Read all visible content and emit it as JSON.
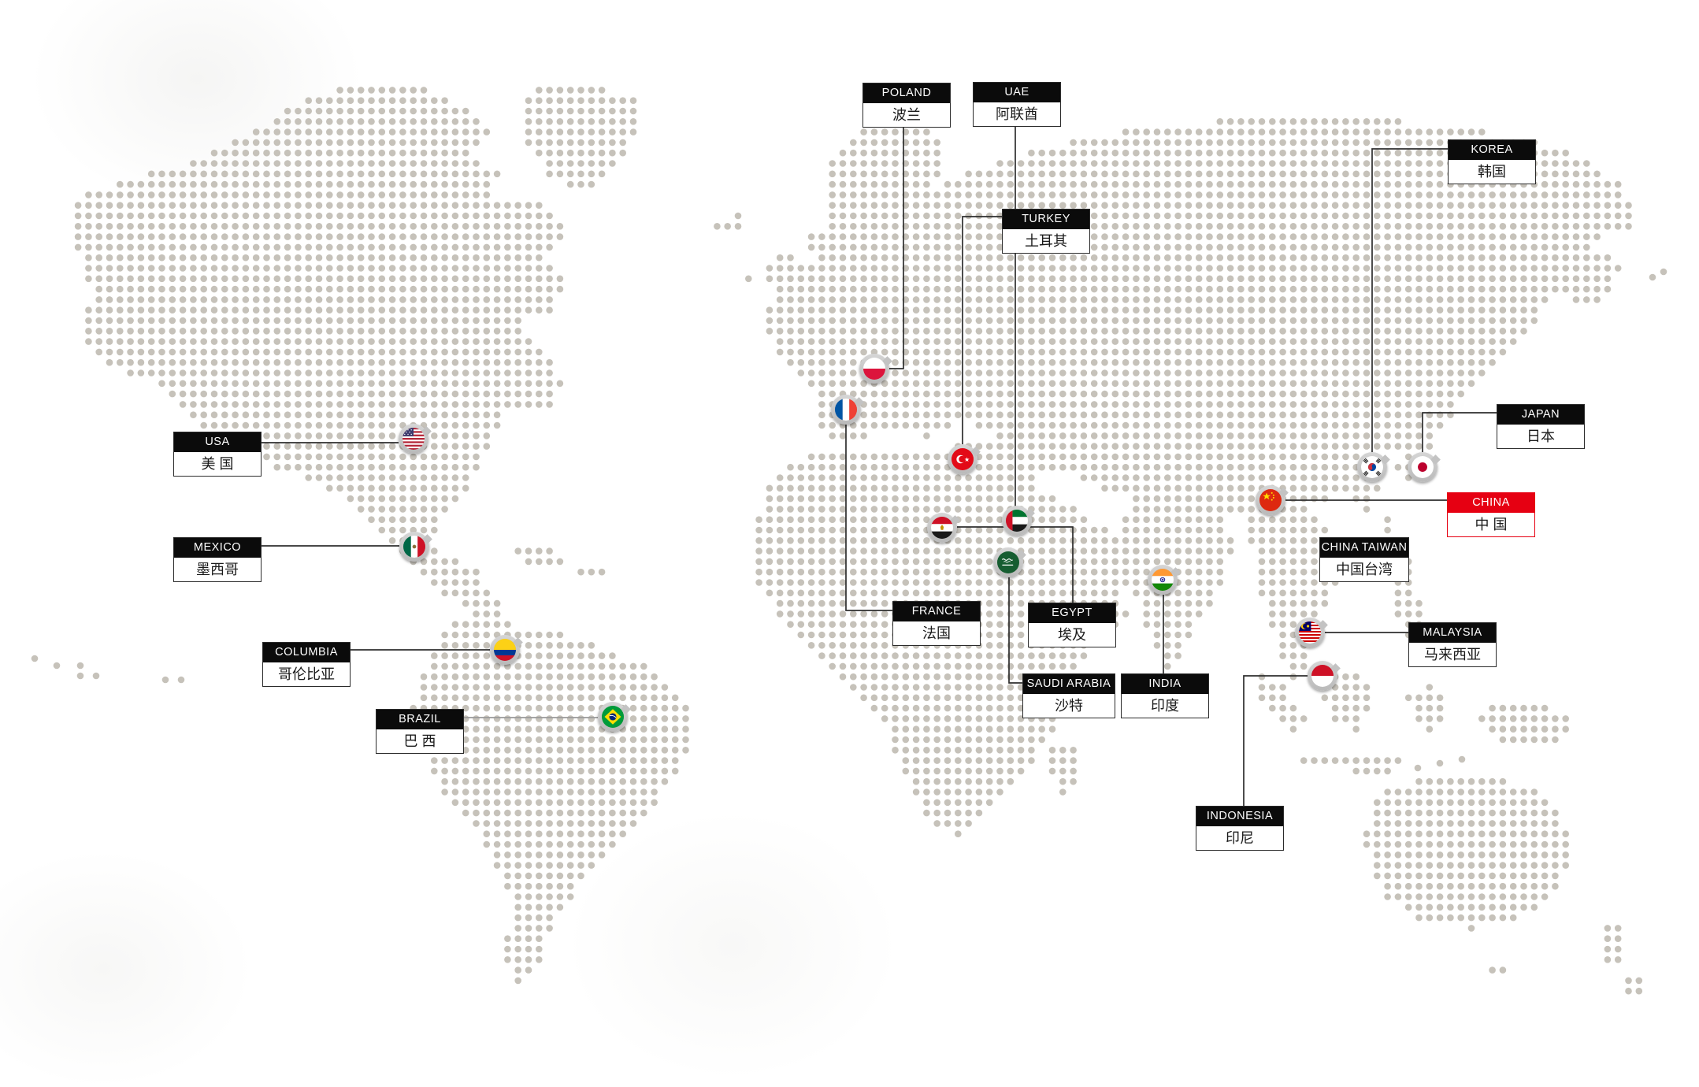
{
  "colors": {
    "accent_red": "#e60012",
    "label_header_bg": "#0b0b0b",
    "dot": "#c6c2ba",
    "line": "#2e2e2e",
    "line_light": "#9a9a9a"
  },
  "countries": [
    {
      "id": "usa",
      "en": "USA",
      "zh": "美 国"
    },
    {
      "id": "mexico",
      "en": "MEXICO",
      "zh": "墨西哥"
    },
    {
      "id": "columbia",
      "en": "COLUMBIA",
      "zh": "哥伦比亚"
    },
    {
      "id": "brazil",
      "en": "BRAZIL",
      "zh": "巴 西"
    },
    {
      "id": "poland",
      "en": "POLAND",
      "zh": "波兰"
    },
    {
      "id": "france",
      "en": "FRANCE",
      "zh": "法国"
    },
    {
      "id": "turkey",
      "en": "TURKEY",
      "zh": "土耳其"
    },
    {
      "id": "egypt",
      "en": "EGYPT",
      "zh": "埃及"
    },
    {
      "id": "uae",
      "en": "UAE",
      "zh": "阿联酋"
    },
    {
      "id": "saudi_arabia",
      "en": "SAUDI ARABIA",
      "zh": "沙特"
    },
    {
      "id": "india",
      "en": "INDIA",
      "zh": "印度"
    },
    {
      "id": "china",
      "en": "CHINA",
      "zh": "中 国",
      "highlight": true
    },
    {
      "id": "china_taiwan",
      "en": "CHINA TAIWAN",
      "zh": "中国台湾"
    },
    {
      "id": "korea",
      "en": "KOREA",
      "zh": "韩国"
    },
    {
      "id": "japan",
      "en": "JAPAN",
      "zh": "日本"
    },
    {
      "id": "malaysia",
      "en": "MALAYSIA",
      "zh": "马来西亚"
    },
    {
      "id": "indonesia",
      "en": "INDONESIA",
      "zh": "印尼"
    }
  ]
}
